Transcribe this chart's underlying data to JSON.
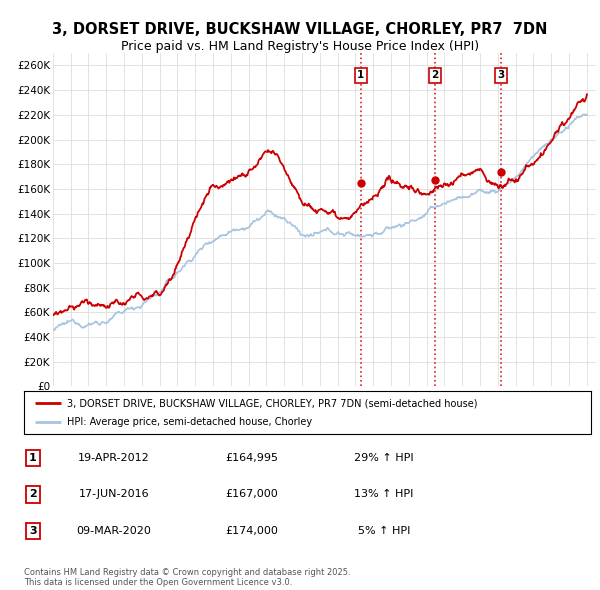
{
  "title_line1": "3, DORSET DRIVE, BUCKSHAW VILLAGE, CHORLEY, PR7  7DN",
  "title_line2": "Price paid vs. HM Land Registry's House Price Index (HPI)",
  "xlim_start": 1995.0,
  "xlim_end": 2025.5,
  "ylim_min": 0,
  "ylim_max": 270000,
  "yticks": [
    0,
    20000,
    40000,
    60000,
    80000,
    100000,
    120000,
    140000,
    160000,
    180000,
    200000,
    220000,
    240000,
    260000
  ],
  "ytick_labels": [
    "£0",
    "£20K",
    "£40K",
    "£60K",
    "£80K",
    "£100K",
    "£120K",
    "£140K",
    "£160K",
    "£180K",
    "£200K",
    "£220K",
    "£240K",
    "£260K"
  ],
  "sale_dates": [
    2012.3,
    2016.46,
    2020.19
  ],
  "sale_prices": [
    164995,
    167000,
    174000
  ],
  "sale_labels": [
    "1",
    "2",
    "3"
  ],
  "hpi_color": "#a8c4e0",
  "property_color": "#cc0000",
  "vline_color": "#cc0000",
  "legend_property": "3, DORSET DRIVE, BUCKSHAW VILLAGE, CHORLEY, PR7 7DN (semi-detached house)",
  "legend_hpi": "HPI: Average price, semi-detached house, Chorley",
  "table_rows": [
    {
      "num": "1",
      "date": "19-APR-2012",
      "price": "£164,995",
      "hpi": "29% ↑ HPI"
    },
    {
      "num": "2",
      "date": "17-JUN-2016",
      "price": "£167,000",
      "hpi": "13% ↑ HPI"
    },
    {
      "num": "3",
      "date": "09-MAR-2020",
      "price": "£174,000",
      "hpi": "5% ↑ HPI"
    }
  ],
  "footnote": "Contains HM Land Registry data © Crown copyright and database right 2025.\nThis data is licensed under the Open Government Licence v3.0.",
  "bg_color": "#ffffff",
  "grid_color": "#dddddd",
  "hpi_knots_x": [
    1995,
    1996,
    1997,
    1998,
    1999,
    2000,
    2001,
    2002,
    2003,
    2004,
    2005,
    2006,
    2007,
    2008,
    2009,
    2010,
    2011,
    2012,
    2013,
    2014,
    2015,
    2016,
    2017,
    2018,
    2019,
    2020,
    2021,
    2022,
    2023,
    2024,
    2025
  ],
  "hpi_knots_y": [
    46000,
    48000,
    51000,
    55000,
    60000,
    68000,
    78000,
    92000,
    108000,
    122000,
    132000,
    141000,
    150000,
    143000,
    130000,
    128000,
    127000,
    126000,
    129000,
    133000,
    138000,
    145000,
    152000,
    158000,
    162000,
    163000,
    175000,
    192000,
    205000,
    215000,
    222000
  ],
  "prop_knots_x": [
    1995,
    1996,
    1997,
    1998,
    1999,
    2000,
    2001,
    2002,
    2003,
    2004,
    2005,
    2006,
    2007,
    2008,
    2009,
    2010,
    2011,
    2012,
    2013,
    2014,
    2015,
    2016,
    2017,
    2018,
    2019,
    2020,
    2021,
    2022,
    2023,
    2024,
    2025
  ],
  "prop_knots_y": [
    59000,
    60500,
    62000,
    63500,
    65000,
    67000,
    70000,
    100000,
    135000,
    162000,
    175000,
    182000,
    195000,
    180000,
    163000,
    161000,
    162000,
    165000,
    172000,
    175000,
    172000,
    167000,
    178000,
    185000,
    188000,
    174000,
    182000,
    195000,
    210000,
    225000,
    238000
  ]
}
